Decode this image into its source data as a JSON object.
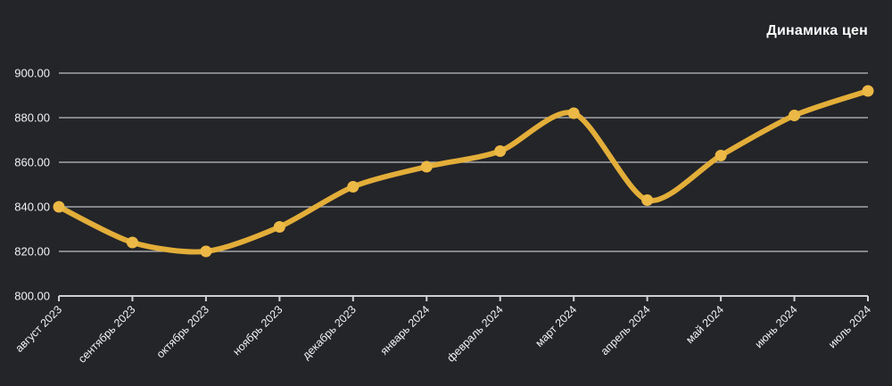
{
  "title": "Динамика цен",
  "colors": {
    "background": "#242529",
    "line": "#E3AE39",
    "point": "#ECB946",
    "grid": "#cfd0d3",
    "axis": "#cfd0d3",
    "tick_text": "#f2f2f3",
    "title_text": "#ffffff"
  },
  "chart_data": {
    "type": "line",
    "title": "Динамика цен",
    "categories": [
      "август 2023",
      "сентябрь 2023",
      "октябрь 2023",
      "ноябрь 2023",
      "декабрь 2023",
      "январь 2024",
      "февраль 2024",
      "март 2024",
      "апрель 2024",
      "май 2024",
      "июнь 2024",
      "июль 2024"
    ],
    "series": [
      {
        "name": "Динамика цен",
        "values": [
          840,
          824,
          820,
          831,
          849,
          858,
          865,
          882,
          843,
          863,
          881,
          892
        ]
      }
    ],
    "ylim": [
      800,
      900
    ],
    "yticks": [
      800,
      820,
      840,
      860,
      880,
      900
    ],
    "ytick_labels": [
      "800.00",
      "820.00",
      "840.00",
      "860.00",
      "880.00",
      "900.00"
    ],
    "grid": true,
    "legend": false,
    "x_label_rotation": -45,
    "curve_tension": 0.4
  }
}
